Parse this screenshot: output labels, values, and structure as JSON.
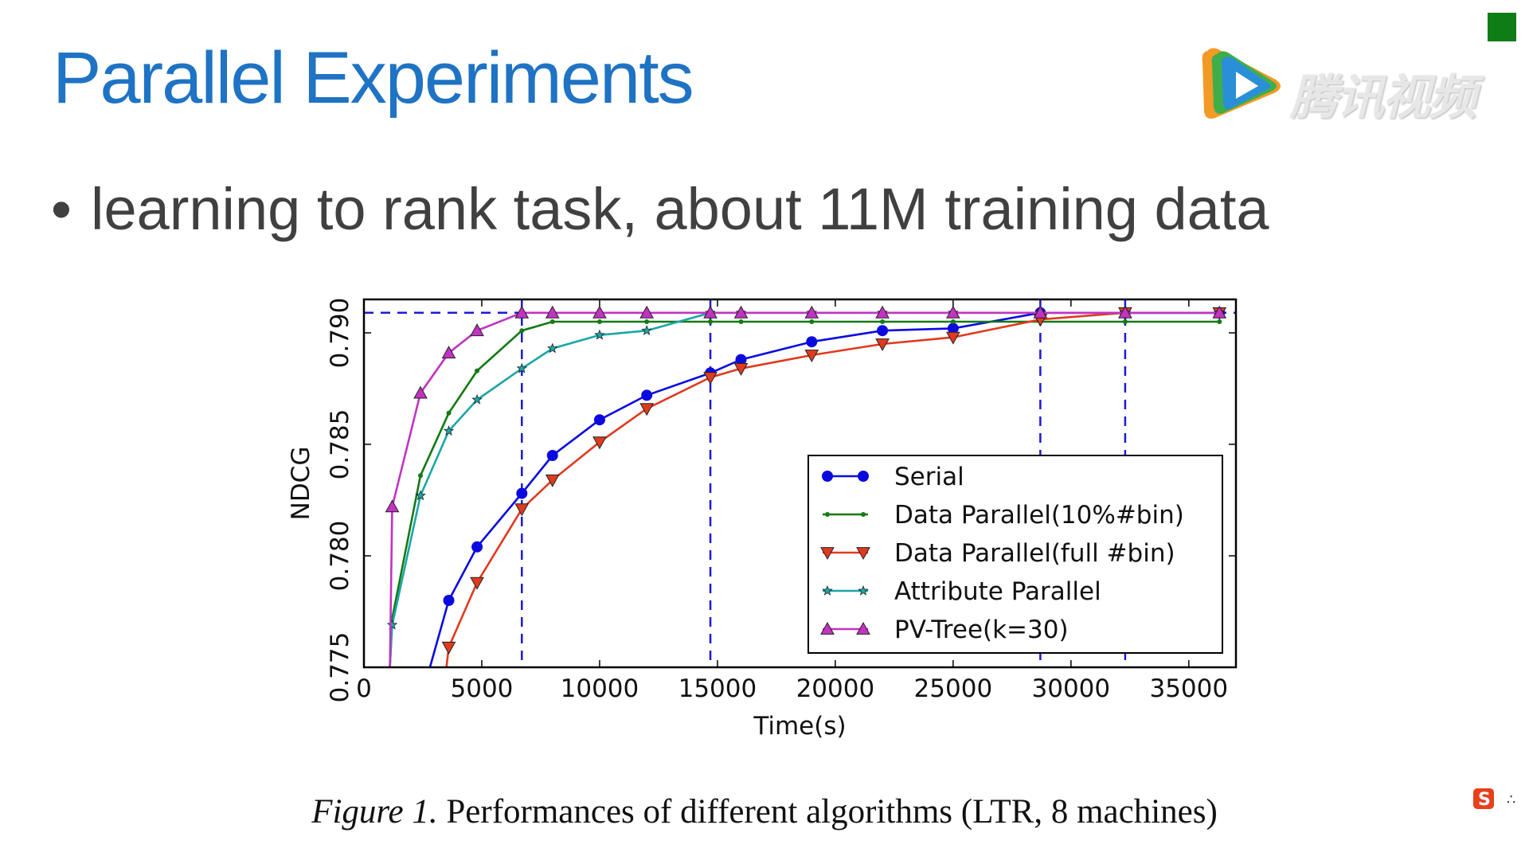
{
  "slide": {
    "title": "Parallel Experiments",
    "bullet": "learning to rank task, about 11M training data",
    "caption_figure": "Figure 1.",
    "caption_text": " Performances of different algorithms (LTR, 8 machines)"
  },
  "watermark": {
    "text": "腾讯视频"
  },
  "colors": {
    "title": "#1f73c4",
    "accent_square": "#0f7d16"
  },
  "chart_data": {
    "type": "line",
    "title": "",
    "xlabel": "Time(s)",
    "ylabel": "NDCG",
    "xlim": [
      0,
      37000
    ],
    "ylim": [
      0.775,
      0.7915
    ],
    "xticks": [
      0,
      5000,
      10000,
      15000,
      20000,
      25000,
      30000,
      35000
    ],
    "yticks": [
      0.775,
      0.78,
      0.785,
      0.79
    ],
    "xtick_labels": [
      "0",
      "5000",
      "10000",
      "15000",
      "20000",
      "25000",
      "30000",
      "35000"
    ],
    "ytick_labels": [
      "0.775",
      "0.780",
      "0.785",
      "0.790"
    ],
    "reference_lines": {
      "horizontal_y": 0.7909,
      "vertical_x": [
        6700,
        14700,
        28700,
        32300
      ]
    },
    "legend_position": "lower-right",
    "series": [
      {
        "name": "Serial",
        "color": "#0a0ae0",
        "marker": "circle",
        "x": [
          2800,
          3600,
          4800,
          6700,
          8000,
          10000,
          12000,
          14700,
          16000,
          19000,
          22000,
          25000,
          28700,
          32300,
          36300
        ],
        "y": [
          0.775,
          0.778,
          0.7804,
          0.7828,
          0.7845,
          0.7861,
          0.7872,
          0.7882,
          0.7888,
          0.7896,
          0.7901,
          0.7902,
          0.7909,
          0.7909,
          0.7909
        ]
      },
      {
        "name": "Data Parallel(10%#bin)",
        "color": "#137a13",
        "marker": "dot",
        "x": [
          1100,
          1200,
          2400,
          3600,
          4800,
          6700,
          8000,
          10000,
          12000,
          14700,
          16000,
          19000,
          22000,
          25000,
          28700,
          32300,
          36300
        ],
        "y": [
          0.775,
          0.7772,
          0.7836,
          0.7864,
          0.7883,
          0.7901,
          0.7905,
          0.7905,
          0.7905,
          0.7905,
          0.7905,
          0.7905,
          0.7905,
          0.7905,
          0.7905,
          0.7905,
          0.7905
        ]
      },
      {
        "name": "Data Parallel(full #bin)",
        "color": "#e03a1e",
        "marker": "triangle-down",
        "x": [
          3500,
          3600,
          4800,
          6700,
          8000,
          10000,
          12000,
          14700,
          16000,
          19000,
          22000,
          25000,
          28700,
          32300,
          36300
        ],
        "y": [
          0.775,
          0.7759,
          0.7788,
          0.7821,
          0.7834,
          0.7851,
          0.7866,
          0.788,
          0.7884,
          0.789,
          0.7895,
          0.7898,
          0.7906,
          0.7909,
          0.7909
        ]
      },
      {
        "name": "Attribute Parallel",
        "color": "#1ca6a6",
        "marker": "star",
        "x": [
          1100,
          1200,
          2400,
          3600,
          4800,
          6700,
          8000,
          10000,
          12000,
          14700,
          16000,
          19000,
          22000,
          25000,
          28700,
          32300,
          36300
        ],
        "y": [
          0.775,
          0.7769,
          0.7827,
          0.7856,
          0.787,
          0.7884,
          0.7893,
          0.7899,
          0.7901,
          0.7909,
          0.7909,
          0.7909,
          0.7909,
          0.7909,
          0.7909,
          0.7909,
          0.7909
        ]
      },
      {
        "name": "PV-Tree(k=30)",
        "color": "#c233c2",
        "marker": "triangle-up",
        "x": [
          1100,
          1200,
          2400,
          3600,
          4800,
          6700,
          8000,
          10000,
          12000,
          14700,
          16000,
          19000,
          22000,
          25000,
          28700,
          32300,
          36300
        ],
        "y": [
          0.775,
          0.7822,
          0.7873,
          0.7891,
          0.7901,
          0.7909,
          0.7909,
          0.7909,
          0.7909,
          0.7909,
          0.7909,
          0.7909,
          0.7909,
          0.7909,
          0.7909,
          0.7909,
          0.7909
        ]
      }
    ]
  }
}
